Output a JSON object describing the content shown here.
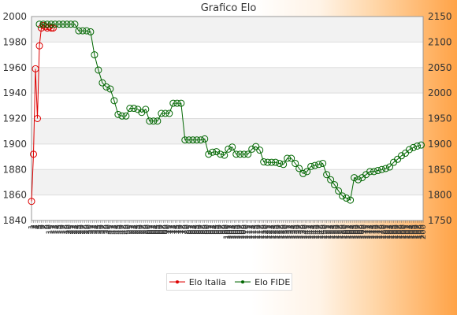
{
  "chart_data": {
    "type": "line",
    "title": "Grafico Elo",
    "xlabel": "",
    "ylabel": "",
    "ylim_left": [
      1840,
      2000
    ],
    "ylim_right": [
      1750,
      2150
    ],
    "yticks_left": [
      1840,
      1860,
      1880,
      1900,
      1920,
      1940,
      1960,
      1980,
      2000
    ],
    "yticks_right": [
      1750,
      1800,
      1850,
      1900,
      1950,
      2000,
      2050,
      2100,
      2150
    ],
    "grid": true,
    "legend_position": "bottom",
    "x_tick_labels": [
      "1",
      "2",
      "3",
      "4",
      "5",
      "6",
      "7",
      "8",
      "9",
      "10",
      "11",
      "12",
      "13",
      "14",
      "15",
      "16",
      "17",
      "18",
      "19",
      "20",
      "21",
      "22",
      "23",
      "24",
      "25",
      "26",
      "27",
      "28",
      "29",
      "30",
      "31",
      "32",
      "33",
      "34",
      "35",
      "36",
      "37",
      "38",
      "39",
      "40",
      "41",
      "42",
      "43",
      "44",
      "45",
      "46",
      "47",
      "48",
      "49",
      "50",
      "51",
      "52",
      "53",
      "54",
      "55",
      "56",
      "57",
      "58",
      "59",
      "60",
      "61",
      "62",
      "63",
      "64",
      "65",
      "66",
      "67",
      "68",
      "69",
      "70",
      "71",
      "72",
      "73",
      "74",
      "75",
      "76",
      "77",
      "78",
      "79",
      "80",
      "81",
      "82",
      "83",
      "84",
      "85",
      "86",
      "87",
      "88",
      "89",
      "90",
      "91",
      "92",
      "93",
      "94",
      "95",
      "96",
      "97",
      "98",
      "99",
      "100",
      "101",
      "102",
      "103",
      "104",
      "105",
      "106",
      "107",
      "108",
      "109",
      "110",
      "111",
      "112",
      "113",
      "114",
      "115",
      "116",
      "117",
      "118",
      "119",
      "120",
      "121",
      "122",
      "123",
      "124",
      "125",
      "126",
      "127",
      "128",
      "129",
      "130",
      "131",
      "132",
      "133",
      "134",
      "135",
      "136",
      "137",
      "138",
      "139",
      "140",
      "141",
      "142",
      "143",
      "144",
      "145",
      "146",
      "147",
      "148",
      "149",
      "150",
      "151",
      "152",
      "153",
      "154",
      "155",
      "156",
      "157",
      "158",
      "159",
      "160",
      "161",
      "162",
      "163",
      "164",
      "165",
      "166",
      "167",
      "168",
      "169",
      "170",
      "171",
      "172",
      "173",
      "174",
      "175",
      "176",
      "177",
      "178",
      "179",
      "180",
      "181",
      "182",
      "183",
      "184",
      "185",
      "186",
      "187",
      "188",
      "189",
      "190",
      "191",
      "192",
      "193",
      "194",
      "195",
      "196",
      "197",
      "198",
      "199",
      "200"
    ],
    "series": [
      {
        "name": "Elo Italia",
        "axis": "left",
        "color": "#dd0000",
        "x": [
          1,
          2,
          3,
          4,
          5,
          6,
          7,
          8,
          9,
          10,
          11,
          12
        ],
        "values": [
          1855,
          1892,
          1959,
          1920,
          1977,
          1991,
          1993,
          1992,
          1991,
          1992,
          1991,
          1991
        ]
      },
      {
        "name": "Elo FIDE",
        "axis": "right",
        "color": "#006600",
        "x": [
          5,
          7,
          9,
          11,
          13,
          15,
          17,
          19,
          21,
          23,
          25,
          27,
          29,
          31,
          33,
          35,
          37,
          39,
          41,
          43,
          45,
          47,
          49,
          51,
          53,
          55,
          57,
          59,
          61,
          63,
          65,
          67,
          69,
          71,
          73,
          75,
          77,
          79,
          81,
          83,
          85,
          87,
          89,
          91,
          93,
          95,
          97,
          99,
          101,
          103,
          105,
          107,
          109,
          111,
          113,
          115,
          117,
          119,
          121,
          123,
          125,
          127,
          129,
          131,
          133,
          135,
          137,
          139,
          141,
          143,
          145,
          147,
          149,
          151,
          153,
          155,
          157,
          159,
          161,
          163,
          165,
          167,
          169,
          171,
          173,
          175,
          177,
          179,
          181,
          183,
          185,
          187,
          189,
          191,
          193,
          195,
          197,
          199
        ],
        "values": [
          2135,
          2135,
          2135,
          2135,
          2135,
          2135,
          2135,
          2135,
          2135,
          2135,
          2122,
          2122,
          2122,
          2120,
          2075,
          2045,
          2020,
          2012,
          2008,
          1985,
          1958,
          1955,
          1955,
          1970,
          1970,
          1968,
          1962,
          1968,
          1945,
          1945,
          1945,
          1960,
          1960,
          1960,
          1980,
          1980,
          1980,
          1908,
          1908,
          1908,
          1908,
          1908,
          1910,
          1880,
          1884,
          1885,
          1880,
          1878,
          1890,
          1894,
          1880,
          1880,
          1880,
          1880,
          1890,
          1895,
          1888,
          1865,
          1864,
          1864,
          1864,
          1862,
          1860,
          1872,
          1872,
          1862,
          1852,
          1842,
          1846,
          1856,
          1858,
          1860,
          1862,
          1840,
          1830,
          1820,
          1808,
          1798,
          1794,
          1790,
          1834,
          1830,
          1834,
          1840,
          1846,
          1846,
          1848,
          1850,
          1852,
          1855,
          1864,
          1870,
          1877,
          1882,
          1889,
          1893,
          1896,
          1898
        ]
      }
    ]
  }
}
